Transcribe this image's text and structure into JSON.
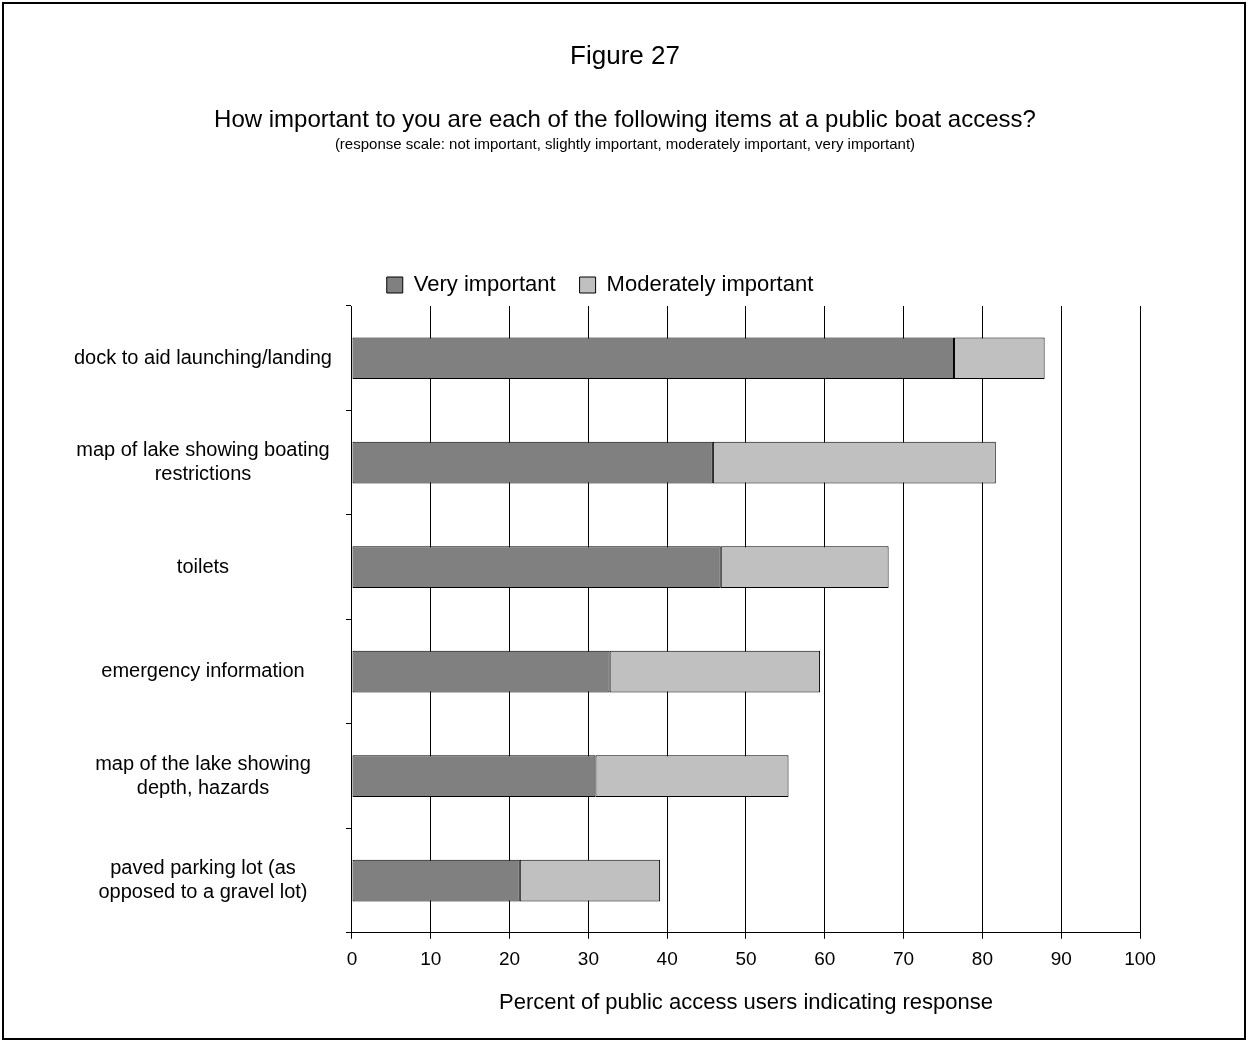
{
  "chart_data": {
    "type": "bar",
    "orientation": "horizontal",
    "stacked": true,
    "title": "How important to you are each of the following items at a public boat access?",
    "subtitle": "(response scale: not important, slightly important, moderately important, very important)",
    "annotations": [
      "Figure 27"
    ],
    "xlabel": "Percent of public access users indicating response",
    "categories": [
      "dock to aid launching/landing",
      "map of lake showing boating restrictions",
      "toilets",
      "emergency information",
      "map of the lake showing depth, hazards",
      "paved parking lot (as opposed to a gravel lot)"
    ],
    "series": [
      {
        "name": "Very important",
        "color": "#808080",
        "values": [
          76.4,
          45.8,
          46.8,
          32.7,
          30.9,
          21.3
        ]
      },
      {
        "name": "Moderately important",
        "color": "#c0c0c0",
        "values": [
          11.5,
          35.9,
          21.3,
          26.7,
          24.5,
          17.8
        ]
      }
    ],
    "xlim": [
      0,
      100
    ],
    "xticks": [
      0,
      10,
      20,
      30,
      40,
      50,
      60,
      70,
      80,
      90,
      100
    ],
    "grid": "x",
    "legend": "top"
  }
}
